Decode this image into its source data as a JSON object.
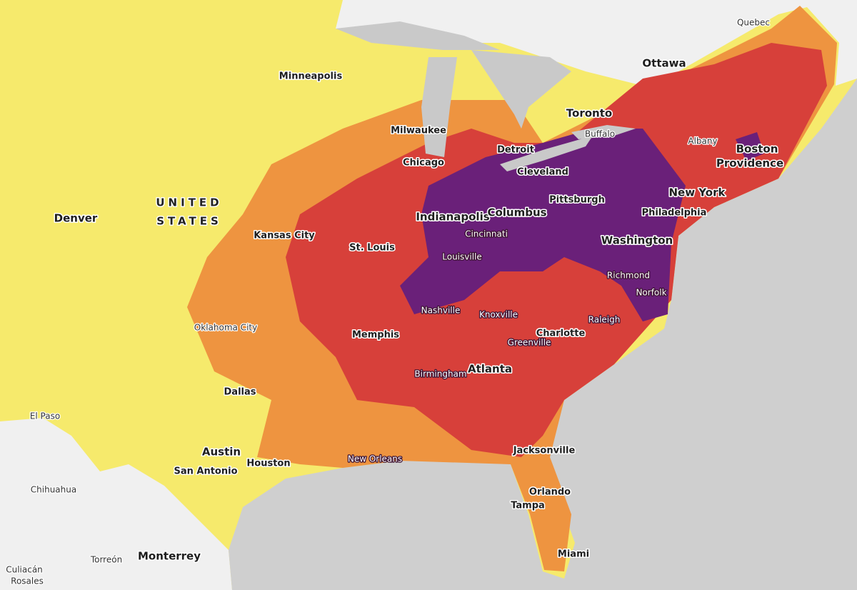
{
  "places": [
    "Quebec",
    "Ottawa",
    "Minneapolis",
    "Toronto",
    "Buffalo",
    "Milwaukee",
    "Detroit",
    "Albany",
    "Boston",
    "Chicago",
    "Cleveland",
    "Providence",
    "New York",
    "Pittsburgh",
    "UNITED",
    "STATES",
    "Denver",
    "Indianapolis",
    "Columbus",
    "Philadelphia",
    "Kansas City",
    "Cincinnati",
    "Washington",
    "St. Louis",
    "Louisville",
    "Richmond",
    "Norfolk",
    "Nashville",
    "Knoxville",
    "Raleigh",
    "Oklahoma City",
    "Charlotte",
    "Memphis",
    "Greenville",
    "Atlanta",
    "Birmingham",
    "Dallas",
    "El Paso",
    "Austin",
    "Jacksonville",
    "New Orleans",
    "Houston",
    "San Antonio",
    "Chihuahua",
    "Orlando",
    "Tampa",
    "Miami",
    "Torreón",
    "Monterrey",
    "Culiacán",
    "Rosales"
  ]
}
